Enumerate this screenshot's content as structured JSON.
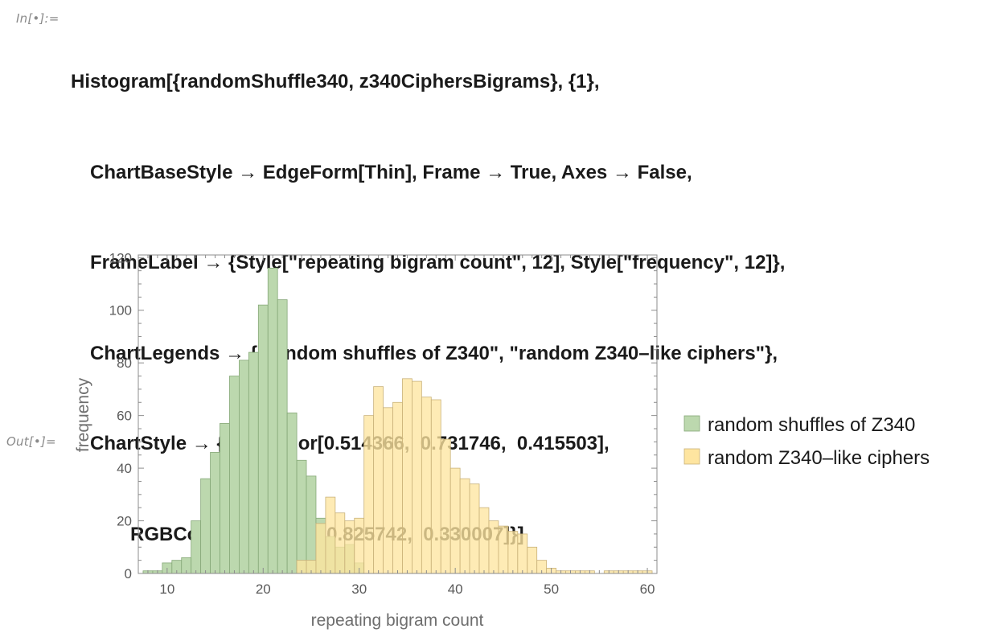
{
  "input_label": "In[•]:=",
  "output_label": "Out[•]=",
  "code_lines": [
    "Histogram[{randomShuffle340, z340CiphersBigrams}, {1},",
    "ChartBaseStyle → EdgeForm[Thin], Frame → True, Axes → False,",
    "FrameLabel → {Style[\"repeating bigram count\", 12], Style[\"frequency\", 12]},",
    "ChartLegends → {\"random shuffles of Z340\", \"random Z340–like ciphers\"},",
    "ChartStyle → {RGBColor[0.514366,  0.731746,  0.415503],",
    "RGBColor[0.996414,  0.825742,  0.330007]}]"
  ],
  "chart_data": {
    "type": "bar",
    "subtype": "histogram",
    "bin_width": 1,
    "xlabel": "repeating bigram count",
    "ylabel": "frequency",
    "xlim": [
      7,
      61
    ],
    "ylim": [
      0,
      121
    ],
    "x_ticks": [
      10,
      20,
      30,
      40,
      50,
      60
    ],
    "y_ticks": [
      0,
      20,
      40,
      60,
      80,
      100,
      120
    ],
    "grid": false,
    "frame": true,
    "legend_placement": "right",
    "series": [
      {
        "name": "random shuffles of Z340",
        "color": "#83BB6A",
        "fill": "#BCD8AE",
        "edge": "#86A878",
        "bins": [
          [
            8,
            1
          ],
          [
            9,
            1
          ],
          [
            10,
            4
          ],
          [
            11,
            5
          ],
          [
            12,
            6
          ],
          [
            13,
            20
          ],
          [
            14,
            36
          ],
          [
            15,
            46
          ],
          [
            16,
            57
          ],
          [
            17,
            75
          ],
          [
            18,
            81
          ],
          [
            19,
            84
          ],
          [
            20,
            102
          ],
          [
            21,
            116
          ],
          [
            22,
            104
          ],
          [
            23,
            61
          ],
          [
            24,
            43
          ],
          [
            25,
            37
          ],
          [
            26,
            21
          ],
          [
            27,
            14
          ],
          [
            28,
            10
          ],
          [
            29,
            11
          ],
          [
            30,
            4
          ]
        ]
      },
      {
        "name": "random Z340–like ciphers",
        "color": "#FED354",
        "fill": "#FEE5A0",
        "edge": "#C9B27A",
        "bins": [
          [
            24,
            5
          ],
          [
            25,
            5
          ],
          [
            26,
            19
          ],
          [
            27,
            29
          ],
          [
            28,
            23
          ],
          [
            29,
            20
          ],
          [
            30,
            21
          ],
          [
            31,
            60
          ],
          [
            32,
            71
          ],
          [
            33,
            63
          ],
          [
            34,
            65
          ],
          [
            35,
            74
          ],
          [
            36,
            73
          ],
          [
            37,
            67
          ],
          [
            38,
            66
          ],
          [
            39,
            51
          ],
          [
            40,
            40
          ],
          [
            41,
            36
          ],
          [
            42,
            34
          ],
          [
            43,
            25
          ],
          [
            44,
            20
          ],
          [
            45,
            18
          ],
          [
            46,
            16
          ],
          [
            47,
            15
          ],
          [
            48,
            10
          ],
          [
            49,
            5
          ],
          [
            50,
            2
          ],
          [
            51,
            1
          ],
          [
            52,
            1
          ],
          [
            53,
            1
          ],
          [
            54,
            1
          ],
          [
            56,
            1
          ],
          [
            57,
            1
          ],
          [
            58,
            1
          ],
          [
            59,
            1
          ],
          [
            60,
            1
          ]
        ]
      }
    ]
  }
}
